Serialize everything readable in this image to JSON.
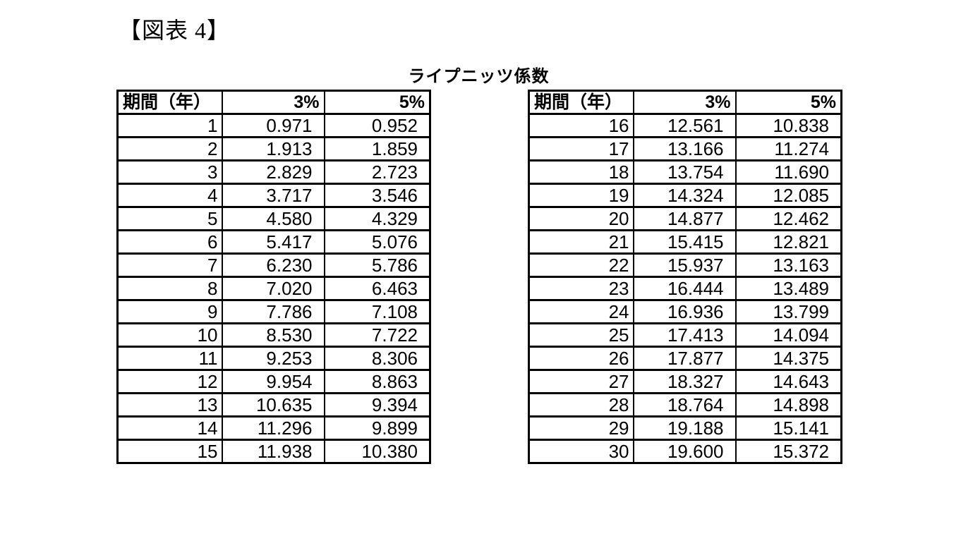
{
  "figure_label": "【図表 4】",
  "table_title": "ライプニッツ係数",
  "tables": {
    "left": {
      "headers": [
        "期間（年）",
        "3%",
        "5%"
      ],
      "rows": [
        [
          "1",
          "0.971",
          "0.952"
        ],
        [
          "2",
          "1.913",
          "1.859"
        ],
        [
          "3",
          "2.829",
          "2.723"
        ],
        [
          "4",
          "3.717",
          "3.546"
        ],
        [
          "5",
          "4.580",
          "4.329"
        ],
        [
          "6",
          "5.417",
          "5.076"
        ],
        [
          "7",
          "6.230",
          "5.786"
        ],
        [
          "8",
          "7.020",
          "6.463"
        ],
        [
          "9",
          "7.786",
          "7.108"
        ],
        [
          "10",
          "8.530",
          "7.722"
        ],
        [
          "11",
          "9.253",
          "8.306"
        ],
        [
          "12",
          "9.954",
          "8.863"
        ],
        [
          "13",
          "10.635",
          "9.394"
        ],
        [
          "14",
          "11.296",
          "9.899"
        ],
        [
          "15",
          "11.938",
          "10.380"
        ]
      ]
    },
    "right": {
      "headers": [
        "期間（年）",
        "3%",
        "5%"
      ],
      "rows": [
        [
          "16",
          "12.561",
          "10.838"
        ],
        [
          "17",
          "13.166",
          "11.274"
        ],
        [
          "18",
          "13.754",
          "11.690"
        ],
        [
          "19",
          "14.324",
          "12.085"
        ],
        [
          "20",
          "14.877",
          "12.462"
        ],
        [
          "21",
          "15.415",
          "12.821"
        ],
        [
          "22",
          "15.937",
          "13.163"
        ],
        [
          "23",
          "16.444",
          "13.489"
        ],
        [
          "24",
          "16.936",
          "13.799"
        ],
        [
          "25",
          "17.413",
          "14.094"
        ],
        [
          "26",
          "17.877",
          "14.375"
        ],
        [
          "27",
          "18.327",
          "14.643"
        ],
        [
          "28",
          "18.764",
          "14.898"
        ],
        [
          "29",
          "19.188",
          "15.141"
        ],
        [
          "30",
          "19.600",
          "15.372"
        ]
      ]
    }
  }
}
